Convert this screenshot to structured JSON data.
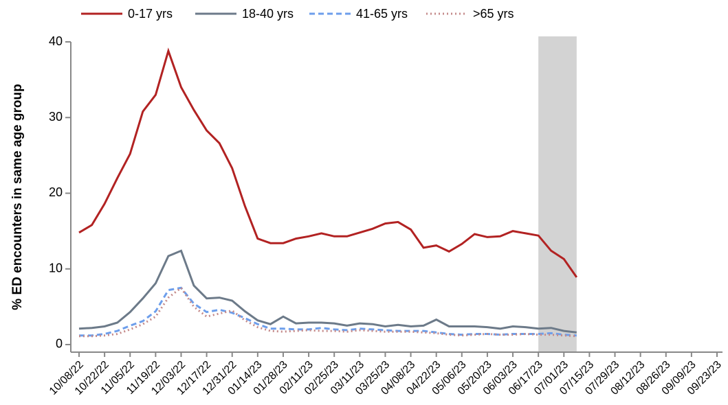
{
  "chart_data": {
    "type": "line",
    "y_label": "% ED encounters in same age group",
    "categories": [
      "10/08/22",
      null,
      "10/22/22",
      null,
      "11/05/22",
      null,
      "11/19/22",
      null,
      "12/03/22",
      null,
      "12/17/22",
      null,
      "12/31/22",
      null,
      "01/14/23",
      null,
      "01/28/23",
      null,
      "02/11/23",
      null,
      "02/25/23",
      null,
      "03/11/23",
      null,
      "03/25/23",
      null,
      "04/08/23",
      null,
      "04/22/23",
      null,
      "05/06/23",
      null,
      "05/20/23",
      null,
      "06/03/23",
      null,
      "06/17/23",
      null,
      "07/01/23",
      null,
      "07/15/23",
      null,
      "07/29/23",
      null,
      "08/12/23",
      null,
      "08/26/23",
      null,
      "09/09/23",
      null,
      "09/23/23"
    ],
    "series": [
      {
        "name": "0-17 yrs",
        "color": "#b22222",
        "style": "solid",
        "values": [
          14.8,
          15.8,
          18.6,
          22,
          25.2,
          30.8,
          33,
          38.8,
          34,
          31,
          28.3,
          26.6,
          23.3,
          18.3,
          14,
          13.4,
          13.4,
          14,
          14.3,
          14.7,
          14.3,
          14.3,
          14.8,
          15.3,
          16,
          16.2,
          15.2,
          12.8,
          13.1,
          12.3,
          13.3,
          14.6,
          14.2,
          14.3,
          15,
          14.7,
          14.4,
          12.4,
          11.3,
          8.9,
          null,
          null,
          null,
          null,
          null,
          null,
          null,
          null,
          null,
          null,
          null
        ]
      },
      {
        "name": "18-40 yrs",
        "color": "#6c7a89",
        "style": "solid",
        "values": [
          2.1,
          2.2,
          2.4,
          2.9,
          4.3,
          6.1,
          8.1,
          11.7,
          12.4,
          7.8,
          6.1,
          6.2,
          5.8,
          4.4,
          3.2,
          2.7,
          3.7,
          2.8,
          2.9,
          2.9,
          2.8,
          2.5,
          2.8,
          2.7,
          2.4,
          2.6,
          2.4,
          2.5,
          3.3,
          2.4,
          2.4,
          2.4,
          2.3,
          2.1,
          2.4,
          2.3,
          2.1,
          2.2,
          1.8,
          1.6,
          null,
          null,
          null,
          null,
          null,
          null,
          null,
          null,
          null,
          null,
          null
        ]
      },
      {
        "name": "41-65 yrs",
        "color": "#6d9eeb",
        "style": "dash",
        "values": [
          1.2,
          1.2,
          1.4,
          1.8,
          2.5,
          3.1,
          4.4,
          7.2,
          7.5,
          5.4,
          4.3,
          4.6,
          4.2,
          3.5,
          2.7,
          2.1,
          2.1,
          2,
          2,
          2.2,
          2,
          1.9,
          2.1,
          2,
          1.9,
          1.8,
          1.8,
          1.8,
          1.6,
          1.4,
          1.3,
          1.4,
          1.4,
          1.3,
          1.4,
          1.4,
          1.4,
          1.5,
          1.3,
          1.2,
          null,
          null,
          null,
          null,
          null,
          null,
          null,
          null,
          null,
          null,
          null
        ]
      },
      {
        "name": ">65 yrs",
        "color": "#c48a8a",
        "style": "dot",
        "values": [
          1.1,
          1.1,
          1.2,
          1.4,
          2,
          2.7,
          3.7,
          6.2,
          7.5,
          5,
          3.7,
          4.1,
          4.5,
          3.2,
          2.3,
          1.8,
          1.7,
          1.8,
          1.9,
          1.8,
          1.8,
          1.7,
          1.9,
          1.8,
          1.7,
          1.7,
          1.7,
          1.6,
          1.5,
          1.3,
          1.2,
          1.3,
          1.4,
          1.3,
          1.3,
          1.4,
          1.3,
          1.3,
          1.2,
          1.1,
          null,
          null,
          null,
          null,
          null,
          null,
          null,
          null,
          null,
          null,
          null
        ]
      }
    ],
    "shade": {
      "from": 36,
      "to": 39,
      "color": "#d3d3d3"
    },
    "ylim": [
      -1,
      40
    ],
    "yticks": [
      0,
      10,
      20,
      30,
      40
    ],
    "legend": "top"
  }
}
